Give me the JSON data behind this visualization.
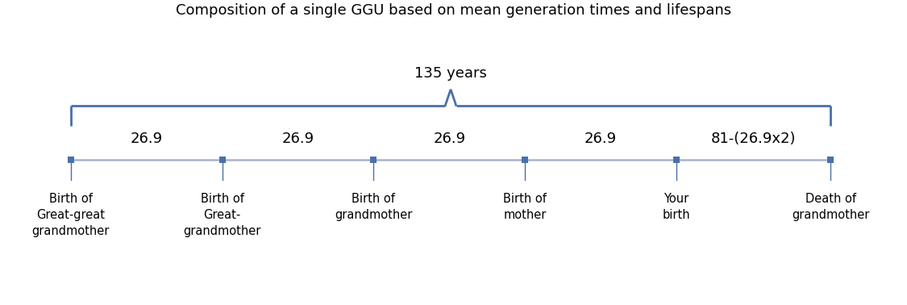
{
  "title": "Composition of a single GGU based on mean generation times and lifespans",
  "title_fontsize": 13,
  "brace_label": "135 years",
  "brace_label_fontsize": 13,
  "segment_labels": [
    "26.9",
    "26.9",
    "26.9",
    "26.9",
    "81-(26.9x2)"
  ],
  "segment_label_fontsize": 13,
  "points": [
    0,
    26.9,
    53.8,
    80.7,
    107.6,
    135
  ],
  "event_labels": [
    "Birth of\nGreat-great\ngrandmother",
    "Birth of\nGreat-\ngrandmother",
    "Birth of\ngrandmother",
    "Birth of\nmother",
    "Your\nbirth",
    "Death of\ngrandmother"
  ],
  "event_label_fontsize": 10.5,
  "line_color": "#aab4c8",
  "marker_color": "#4a6fad",
  "drop_line_color": "#4a6fad",
  "brace_color": "#4a6fad",
  "figsize": [
    11.25,
    3.78
  ],
  "dpi": 100
}
